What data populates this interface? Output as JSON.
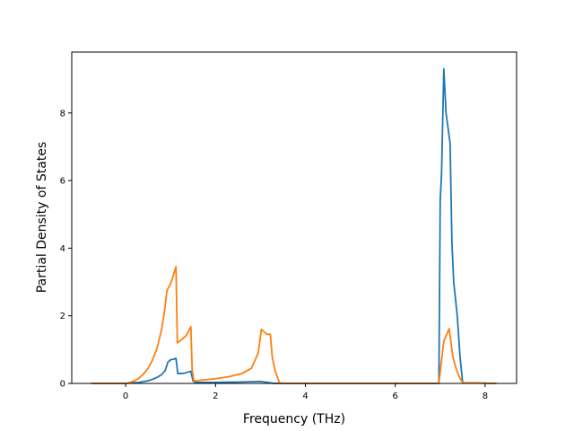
{
  "chart_data": {
    "type": "line",
    "title": "",
    "xlabel": "Frequency (THz)",
    "ylabel": "Partial Density of States",
    "xlim": [
      -1.2,
      8.7
    ],
    "ylim": [
      0,
      9.8
    ],
    "xticks": [
      0,
      2,
      4,
      6,
      8
    ],
    "yticks": [
      0,
      2,
      4,
      6,
      8
    ],
    "grid": false,
    "legend": "none",
    "series": [
      {
        "color": "#1f77b4",
        "points": [
          [
            -0.77,
            0.0
          ],
          [
            0.0,
            0.0
          ],
          [
            0.3,
            0.03
          ],
          [
            0.5,
            0.08
          ],
          [
            0.6,
            0.12
          ],
          [
            0.7,
            0.18
          ],
          [
            0.8,
            0.26
          ],
          [
            0.88,
            0.38
          ],
          [
            0.94,
            0.63
          ],
          [
            1.0,
            0.7
          ],
          [
            1.08,
            0.72
          ],
          [
            1.12,
            0.74
          ],
          [
            1.16,
            0.29
          ],
          [
            1.3,
            0.3
          ],
          [
            1.45,
            0.36
          ],
          [
            1.5,
            0.07
          ],
          [
            1.55,
            0.03
          ],
          [
            2.0,
            0.03
          ],
          [
            2.5,
            0.04
          ],
          [
            3.0,
            0.06
          ],
          [
            3.1,
            0.04
          ],
          [
            3.2,
            0.02
          ],
          [
            3.3,
            0.0
          ],
          [
            6.97,
            0.0
          ],
          [
            7.0,
            5.4
          ],
          [
            7.03,
            6.2
          ],
          [
            7.08,
            9.3
          ],
          [
            7.13,
            8.0
          ],
          [
            7.22,
            7.1
          ],
          [
            7.26,
            4.2
          ],
          [
            7.3,
            3.0
          ],
          [
            7.38,
            2.0
          ],
          [
            7.44,
            0.8
          ],
          [
            7.5,
            0.02
          ],
          [
            8.25,
            0.0
          ]
        ]
      },
      {
        "color": "#ff7f0e",
        "points": [
          [
            -0.77,
            0.0
          ],
          [
            0.0,
            0.0
          ],
          [
            0.1,
            0.03
          ],
          [
            0.2,
            0.08
          ],
          [
            0.3,
            0.16
          ],
          [
            0.4,
            0.28
          ],
          [
            0.5,
            0.45
          ],
          [
            0.6,
            0.7
          ],
          [
            0.7,
            1.05
          ],
          [
            0.8,
            1.6
          ],
          [
            0.86,
            2.1
          ],
          [
            0.92,
            2.75
          ],
          [
            1.0,
            2.95
          ],
          [
            1.05,
            3.15
          ],
          [
            1.12,
            3.45
          ],
          [
            1.15,
            1.2
          ],
          [
            1.25,
            1.3
          ],
          [
            1.35,
            1.42
          ],
          [
            1.45,
            1.68
          ],
          [
            1.48,
            0.4
          ],
          [
            1.52,
            0.07
          ],
          [
            1.7,
            0.1
          ],
          [
            2.0,
            0.14
          ],
          [
            2.3,
            0.2
          ],
          [
            2.6,
            0.3
          ],
          [
            2.8,
            0.45
          ],
          [
            2.95,
            0.9
          ],
          [
            3.02,
            1.6
          ],
          [
            3.1,
            1.5
          ],
          [
            3.15,
            1.45
          ],
          [
            3.22,
            1.45
          ],
          [
            3.26,
            0.8
          ],
          [
            3.32,
            0.4
          ],
          [
            3.42,
            0.02
          ],
          [
            3.5,
            0.0
          ],
          [
            6.97,
            0.0
          ],
          [
            7.04,
            0.8
          ],
          [
            7.08,
            1.25
          ],
          [
            7.2,
            1.62
          ],
          [
            7.24,
            1.2
          ],
          [
            7.28,
            0.8
          ],
          [
            7.34,
            0.5
          ],
          [
            7.42,
            0.2
          ],
          [
            7.5,
            0.02
          ],
          [
            8.25,
            0.0
          ]
        ]
      }
    ]
  }
}
